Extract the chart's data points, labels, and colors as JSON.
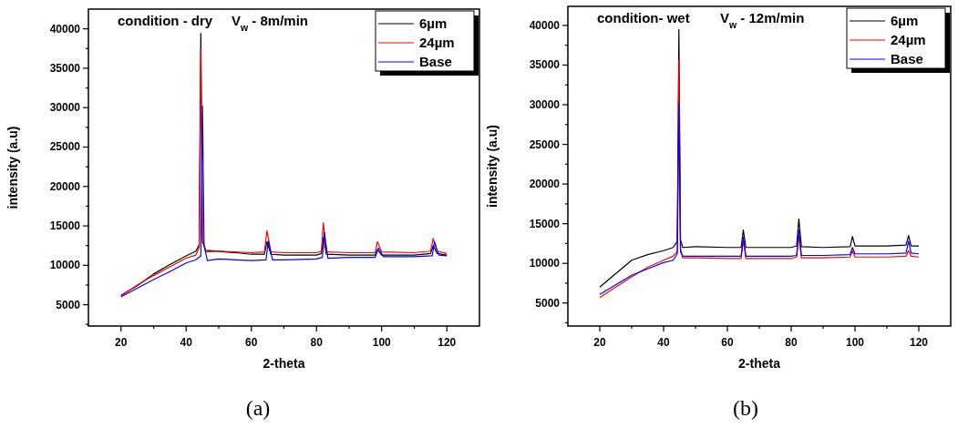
{
  "chart_data": [
    {
      "type": "line",
      "title": "condition - dry     V$_{w}$ - 8m/min",
      "xlabel": "2-theta",
      "ylabel": "intensity (a.u)",
      "annotations": [
        "(a)"
      ],
      "xlim": [
        10,
        130
      ],
      "ylim": [
        2300,
        42500
      ],
      "xticks": [
        20,
        {
          "value": 30,
          "label": null
        },
        40,
        {
          "value": 50,
          "label": null
        },
        60,
        {
          "value": 70,
          "label": null
        },
        80,
        {
          "value": 90,
          "label": null
        },
        100,
        {
          "value": 110,
          "label": null
        },
        120
      ],
      "yticks": [
        {
          "value": 2500,
          "label": null
        },
        5000,
        {
          "value": 7500,
          "label": null
        },
        10000,
        {
          "value": 12500,
          "label": null
        },
        15000,
        {
          "value": 17500,
          "label": null
        },
        20000,
        {
          "value": 22500,
          "label": null
        },
        25000,
        {
          "value": 27500,
          "label": null
        },
        30000,
        {
          "value": 32500,
          "label": null
        },
        35000,
        {
          "value": 37500,
          "label": null
        },
        40000
      ],
      "grid": false,
      "legend": "top right",
      "series": [
        {
          "name": "6µm",
          "color": "#000000",
          "x": [
            20,
            25,
            30,
            35,
            40,
            43,
            44,
            44.5,
            45,
            46,
            55,
            60,
            64,
            64.8,
            66,
            70,
            80,
            81.5,
            82.1,
            83,
            90,
            98,
            98.7,
            100,
            110,
            115,
            115.8,
            117,
            120
          ],
          "values": [
            6200,
            7400,
            8900,
            10100,
            11200,
            11800,
            12600,
            39400,
            13000,
            11900,
            11600,
            11400,
            11400,
            13000,
            11400,
            11300,
            11300,
            11500,
            13500,
            11400,
            11300,
            11300,
            12000,
            11300,
            11300,
            11500,
            12500,
            11500,
            11300
          ]
        },
        {
          "name": "24µm",
          "color": "#ff0000",
          "x": [
            20,
            25,
            30,
            35,
            40,
            43,
            44,
            44.5,
            45,
            46,
            50,
            55,
            60,
            64,
            64.8,
            66,
            70,
            80,
            81.5,
            82.1,
            83,
            90,
            98,
            98.7,
            100,
            110,
            115,
            115.8,
            117,
            120
          ],
          "values": [
            6100,
            7500,
            8700,
            9800,
            10900,
            11300,
            12300,
            37400,
            13500,
            11700,
            11800,
            11700,
            11600,
            11700,
            14400,
            11700,
            11600,
            11600,
            11800,
            15400,
            11700,
            11600,
            11600,
            13000,
            11700,
            11600,
            11800,
            13400,
            11800,
            11500
          ]
        },
        {
          "name": "Base",
          "color": "#0000ff",
          "x": [
            20,
            25,
            30,
            35,
            40,
            43,
            44.5,
            45,
            45.5,
            46.5,
            50,
            55,
            60,
            64.5,
            65.2,
            66.5,
            70,
            80,
            81.8,
            82.4,
            83.5,
            90,
            98,
            99,
            100.5,
            110,
            115.5,
            116.2,
            117.5,
            120
          ],
          "values": [
            6000,
            7100,
            8200,
            9200,
            10300,
            10700,
            11200,
            30200,
            12500,
            10600,
            10800,
            10700,
            10600,
            10700,
            13100,
            10700,
            10700,
            10800,
            11000,
            14200,
            10900,
            11000,
            11000,
            12200,
            11100,
            11100,
            11200,
            13000,
            11300,
            11200
          ]
        }
      ]
    },
    {
      "type": "line",
      "title": "condition- wet        V$_{w}$ - 12m/min",
      "xlabel": "2-theta",
      "ylabel": "intensity (a.u)",
      "annotations": [
        "(b)"
      ],
      "xlim": [
        10,
        130
      ],
      "ylim": [
        2100,
        42400
      ],
      "xticks": [
        20,
        {
          "value": 30,
          "label": null
        },
        40,
        {
          "value": 50,
          "label": null
        },
        60,
        {
          "value": 70,
          "label": null
        },
        80,
        {
          "value": 90,
          "label": null
        },
        100,
        {
          "value": 110,
          "label": null
        },
        120
      ],
      "yticks": [
        {
          "value": 2500,
          "label": null
        },
        5000,
        {
          "value": 7500,
          "label": null
        },
        10000,
        {
          "value": 12500,
          "label": null
        },
        15000,
        {
          "value": 17500,
          "label": null
        },
        20000,
        {
          "value": 22500,
          "label": null
        },
        25000,
        {
          "value": 27500,
          "label": null
        },
        30000,
        {
          "value": 32500,
          "label": null
        },
        35000,
        {
          "value": 37500,
          "label": null
        },
        40000
      ],
      "grid": false,
      "legend": "top right",
      "series": [
        {
          "name": "6µm",
          "color": "#000000",
          "x": [
            20,
            25,
            30,
            35,
            40,
            43,
            44.3,
            44.8,
            45.3,
            46,
            50,
            60,
            64.3,
            65,
            65.8,
            70,
            80,
            81.7,
            82.4,
            83.2,
            90,
            98.5,
            99.2,
            100,
            110,
            116,
            116.8,
            117.6,
            120
          ],
          "values": [
            7000,
            8700,
            10400,
            11100,
            11600,
            12000,
            12800,
            39500,
            13000,
            12000,
            12100,
            12000,
            12000,
            14200,
            12000,
            12000,
            12000,
            12200,
            15600,
            12100,
            12000,
            12100,
            13400,
            12200,
            12200,
            12300,
            13500,
            12200,
            12200
          ]
        },
        {
          "name": "24µm",
          "color": "#ff0000",
          "x": [
            20,
            25,
            30,
            35,
            40,
            43,
            44.3,
            44.8,
            45.3,
            46,
            50,
            60,
            64.3,
            65,
            65.8,
            70,
            80,
            81.7,
            82.4,
            83.2,
            90,
            98.5,
            99.2,
            100,
            110,
            116,
            116.8,
            117.6,
            120
          ],
          "values": [
            5700,
            7000,
            8300,
            9500,
            10400,
            10900,
            11500,
            35700,
            11800,
            10700,
            10700,
            10600,
            10600,
            12900,
            10600,
            10600,
            10600,
            10800,
            13500,
            10700,
            10700,
            10800,
            11600,
            10800,
            10800,
            10900,
            11600,
            10900,
            10800
          ]
        },
        {
          "name": "Base",
          "color": "#0000ff",
          "x": [
            20,
            25,
            30,
            35,
            40,
            43,
            44.3,
            44.8,
            45.3,
            46,
            50,
            60,
            64.3,
            65,
            65.8,
            70,
            80,
            81.7,
            82.4,
            83.2,
            90,
            98.5,
            99.2,
            100,
            110,
            116,
            116.8,
            117.6,
            120
          ],
          "values": [
            6100,
            7300,
            8500,
            9300,
            10100,
            10400,
            11200,
            30200,
            11500,
            10900,
            10900,
            10900,
            10900,
            13300,
            10900,
            10900,
            10900,
            11000,
            14200,
            11000,
            11000,
            11100,
            12000,
            11200,
            11200,
            11300,
            12800,
            11300,
            11200
          ]
        }
      ]
    }
  ]
}
